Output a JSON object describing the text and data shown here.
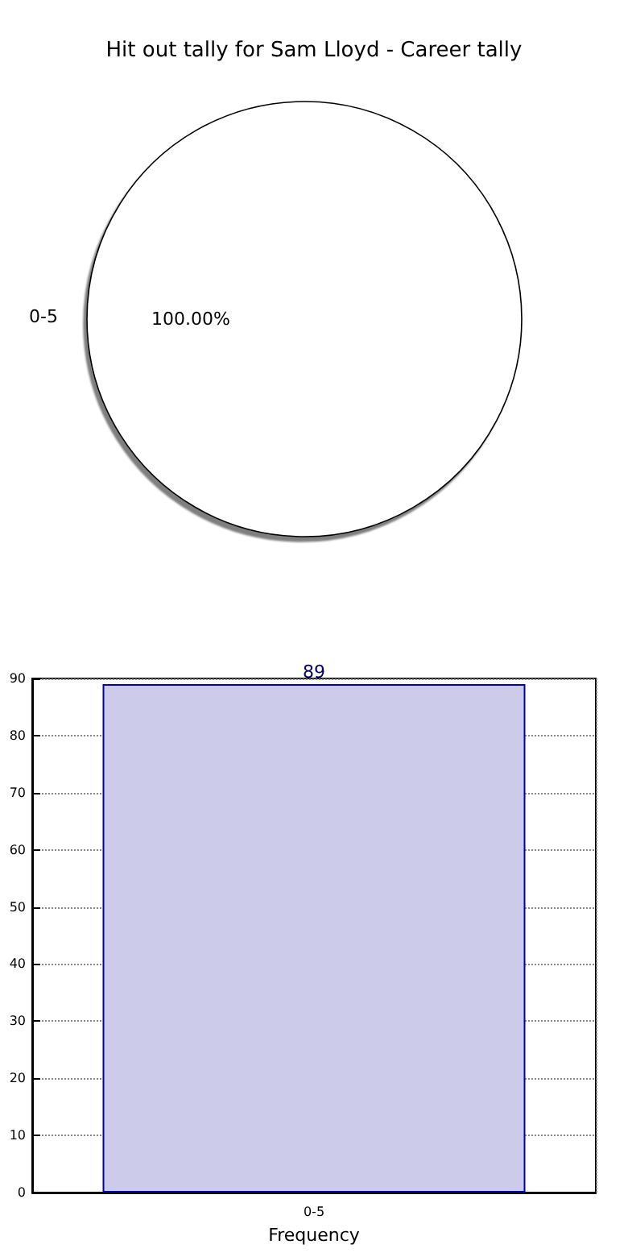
{
  "chart_data": [
    {
      "type": "pie",
      "title": "Hit out tally for Sam Lloyd - Career tally",
      "categories": [
        "0-5"
      ],
      "values": [
        100
      ],
      "colors": [
        "#ffffff"
      ],
      "value_labels": [
        "100.00%"
      ]
    },
    {
      "type": "bar",
      "categories": [
        "0-5"
      ],
      "values": [
        89
      ],
      "color": "#ccccea",
      "xlabel": "Frequency",
      "ylim": [
        0,
        90
      ],
      "yticks": [
        0,
        10,
        20,
        30,
        40,
        50,
        60,
        70,
        80,
        90
      ],
      "grid": true,
      "data_labels": true
    }
  ]
}
